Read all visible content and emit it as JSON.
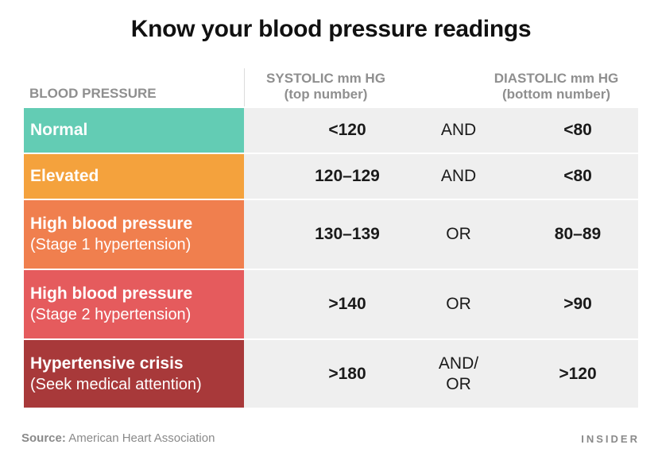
{
  "title": "Know your blood pressure readings",
  "headers": {
    "category": "BLOOD PRESSURE",
    "systolic_line1": "SYSTOLIC mm HG",
    "systolic_line2": "(top number)",
    "diastolic_line1": "DIASTOLIC mm HG",
    "diastolic_line2": "(bottom number)"
  },
  "rows": [
    {
      "label": "Normal",
      "sublabel": "",
      "systolic": "<120",
      "operator": "AND",
      "diastolic": "<80",
      "color": "#63ccb4"
    },
    {
      "label": "Elevated",
      "sublabel": "",
      "systolic": "120–129",
      "operator": "AND",
      "diastolic": "<80",
      "color": "#f4a23d"
    },
    {
      "label": "High blood pressure",
      "sublabel": "(Stage 1 hypertension)",
      "systolic": "130–139",
      "operator": "OR",
      "diastolic": "80–89",
      "color": "#f07f4e"
    },
    {
      "label": "High blood pressure",
      "sublabel": "(Stage 2 hypertension)",
      "systolic": ">140",
      "operator": "OR",
      "diastolic": ">90",
      "color": "#e55b5d"
    },
    {
      "label": "Hypertensive crisis",
      "sublabel": "(Seek medical attention)",
      "systolic": ">180",
      "operator_line1": "AND/",
      "operator_line2": "OR",
      "diastolic": ">120",
      "color": "#a8393a"
    }
  ],
  "footer": {
    "source_label": "Source:",
    "source_text": "American Heart Association",
    "brand": "INSIDER"
  }
}
